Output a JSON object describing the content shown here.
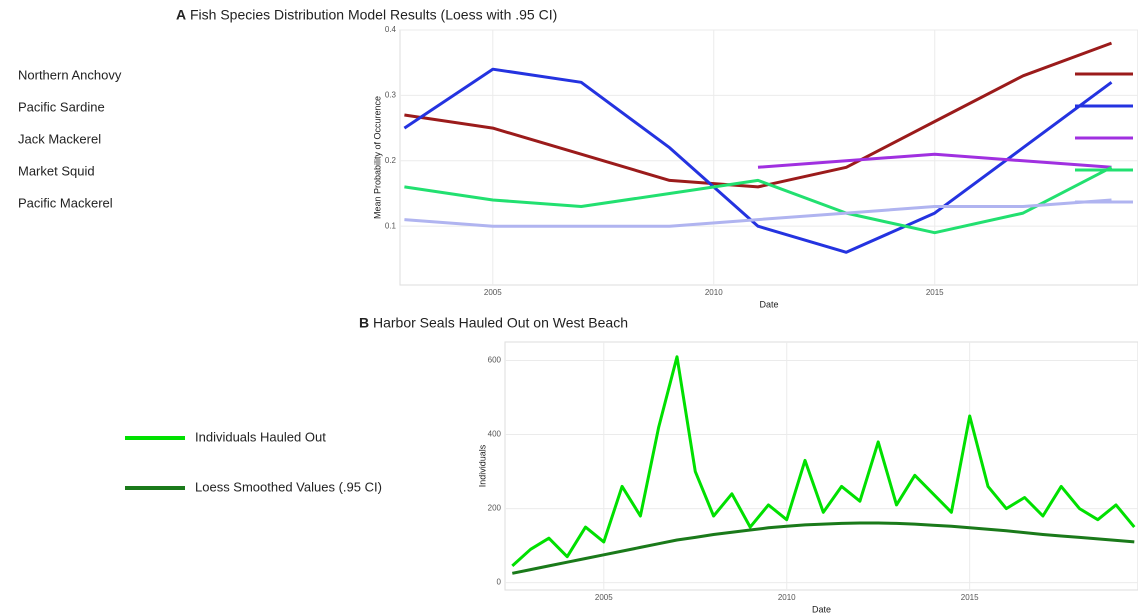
{
  "chart_data": [
    {
      "type": "line",
      "title": "Fish Species Distribution Model Results (Loess with .95 CI)",
      "panel": "A",
      "x_label": "Date",
      "y_label": "Mean Probability of Occurence",
      "x": [
        2003,
        2005,
        2007,
        2009,
        2011,
        2013,
        2015,
        2017,
        2019
      ],
      "xlim": [
        2002.9,
        2019.6
      ],
      "xticks": [
        2005,
        2010,
        2015
      ],
      "ylim": [
        0.01,
        0.4
      ],
      "yticks": [
        0.1,
        0.2,
        0.3,
        0.4
      ],
      "grid": true,
      "legend": "left",
      "series": [
        {
          "name": "Northern Anchovy",
          "color": "#9b1b1b",
          "values": [
            0.27,
            0.25,
            0.21,
            0.17,
            0.16,
            0.19,
            0.26,
            0.33,
            0.38
          ]
        },
        {
          "name": "Pacific Sardine",
          "color": "#2433e0",
          "values": [
            0.25,
            0.34,
            0.32,
            0.22,
            0.1,
            0.06,
            0.12,
            0.22,
            0.32
          ]
        },
        {
          "name": "Jack Mackerel",
          "color": "#a030e0",
          "values": [
            null,
            null,
            null,
            null,
            0.19,
            0.2,
            0.21,
            0.2,
            0.19
          ]
        },
        {
          "name": "Market Squid",
          "color": "#22e070",
          "values": [
            0.16,
            0.14,
            0.13,
            0.15,
            0.17,
            0.12,
            0.09,
            0.12,
            0.19
          ]
        },
        {
          "name": "Pacific Mackerel",
          "color": "#b0b4f0",
          "values": [
            0.11,
            0.1,
            0.1,
            0.1,
            0.11,
            0.12,
            0.13,
            0.13,
            0.14
          ]
        }
      ]
    },
    {
      "type": "line",
      "title": "Harbor Seals Hauled Out on West Beach",
      "panel": "B",
      "x_label": "Date",
      "y_label": "Individuals",
      "x": [
        2002.5,
        2003,
        2003.5,
        2004,
        2004.5,
        2005,
        2005.5,
        2006,
        2006.5,
        2007,
        2007.5,
        2008,
        2008.5,
        2009,
        2009.5,
        2010,
        2010.5,
        2011,
        2011.5,
        2012,
        2012.5,
        2013,
        2013.5,
        2014,
        2014.5,
        2015,
        2015.5,
        2016,
        2016.5,
        2017,
        2017.5,
        2018,
        2018.5,
        2019,
        2019.5
      ],
      "xlim": [
        2002.3,
        2019.6
      ],
      "xticks": [
        2005,
        2010,
        2015
      ],
      "ylim": [
        -20,
        650
      ],
      "yticks": [
        0,
        200,
        400,
        600
      ],
      "grid": true,
      "legend": "left",
      "series": [
        {
          "name": "Individuals Hauled Out",
          "color": "#00e000",
          "values": [
            45,
            90,
            120,
            70,
            150,
            110,
            260,
            180,
            420,
            610,
            300,
            180,
            240,
            150,
            210,
            170,
            330,
            190,
            260,
            220,
            380,
            210,
            290,
            240,
            190,
            450,
            260,
            200,
            230,
            180,
            260,
            200,
            170,
            210,
            150
          ]
        },
        {
          "name": "Loess Smoothed Values (.95 CI)",
          "color": "#1a7a1a",
          "values": [
            25,
            35,
            45,
            55,
            65,
            75,
            85,
            95,
            105,
            115,
            122,
            130,
            136,
            142,
            148,
            152,
            156,
            158,
            160,
            161,
            161,
            160,
            158,
            155,
            152,
            148,
            144,
            140,
            135,
            130,
            126,
            122,
            118,
            114,
            110
          ]
        }
      ]
    }
  ]
}
